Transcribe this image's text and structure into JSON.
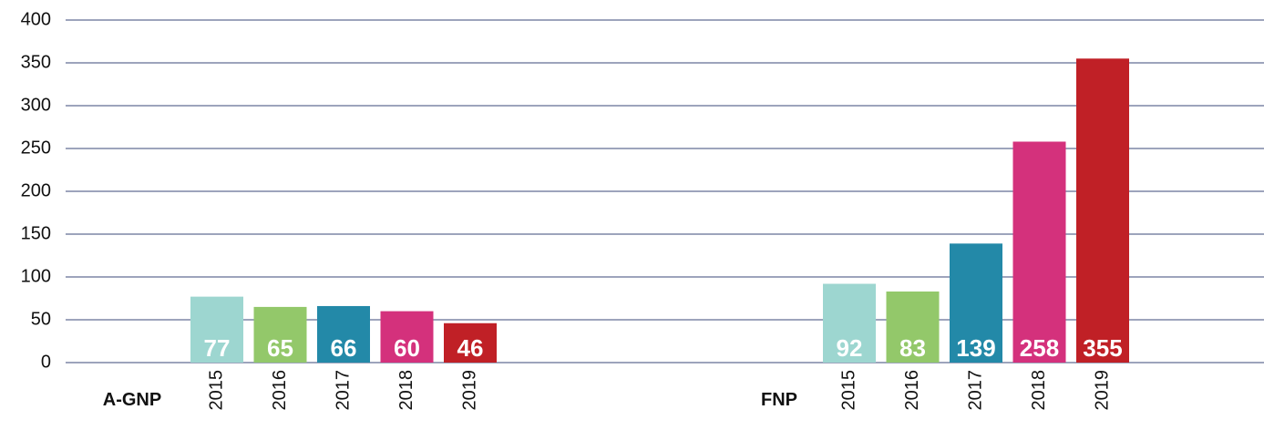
{
  "chart_data": {
    "type": "bar",
    "categories": [
      "A-GNP",
      "FNP"
    ],
    "series": [
      {
        "name": "2015",
        "color": "#9dd6d0",
        "values": [
          77,
          92
        ]
      },
      {
        "name": "2016",
        "color": "#93c86a",
        "values": [
          65,
          83
        ]
      },
      {
        "name": "2017",
        "color": "#2389a8",
        "values": [
          66,
          139
        ]
      },
      {
        "name": "2018",
        "color": "#d4317c",
        "values": [
          60,
          258
        ]
      },
      {
        "name": "2019",
        "color": "#c02026",
        "values": [
          46,
          355
        ]
      }
    ],
    "ylim": [
      0,
      400
    ],
    "yticks": [
      0,
      50,
      100,
      150,
      200,
      250,
      300,
      350,
      400
    ],
    "grid": true
  }
}
